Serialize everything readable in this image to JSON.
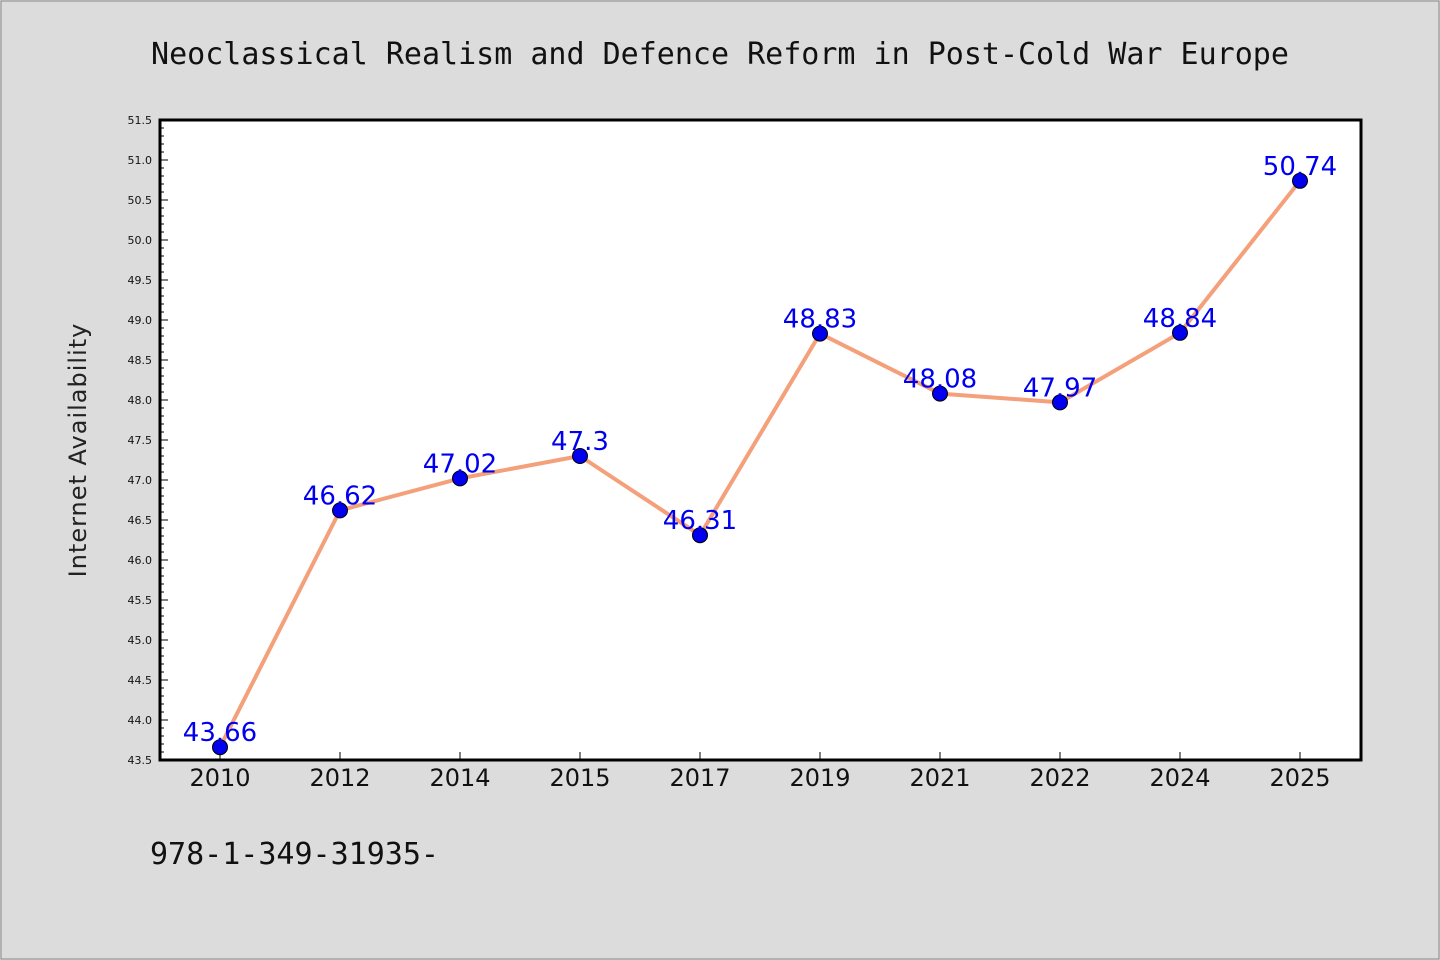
{
  "chart_data": {
    "type": "line",
    "title": "Neoclassical Realism and Defence Reform in Post-Cold War Europe",
    "xlabel": "",
    "ylabel": "Internet Availability",
    "categories": [
      "2010",
      "2012",
      "2014",
      "2015",
      "2017",
      "2019",
      "2021",
      "2022",
      "2024",
      "2025"
    ],
    "series": [
      {
        "values": [
          43.66,
          46.62,
          47.02,
          47.3,
          46.31,
          48.83,
          48.08,
          47.97,
          48.84,
          50.74
        ],
        "data_labels": [
          "43.66",
          "46.62",
          "47.02",
          "47.3",
          "46.31",
          "48.83",
          "48.08",
          "47.97",
          "48.84",
          "50.74"
        ]
      }
    ],
    "ylim": [
      43.5,
      51.5
    ],
    "yticks": [
      "43.5",
      "44.0",
      "44.5",
      "45.0",
      "45.5",
      "46.0",
      "46.5",
      "47.0",
      "47.5",
      "48.0",
      "48.5",
      "49.0",
      "49.5",
      "50.0",
      "50.5",
      "51.0",
      "51.5"
    ],
    "grid": false,
    "legend": "none",
    "colors": {
      "line": "#f4a07a",
      "marker": "#0000ee",
      "data_label": "#0000ee",
      "background": "#dcdcdc",
      "plot_background": "#ffffff"
    }
  },
  "footer_text": "978-1-349-31935-"
}
